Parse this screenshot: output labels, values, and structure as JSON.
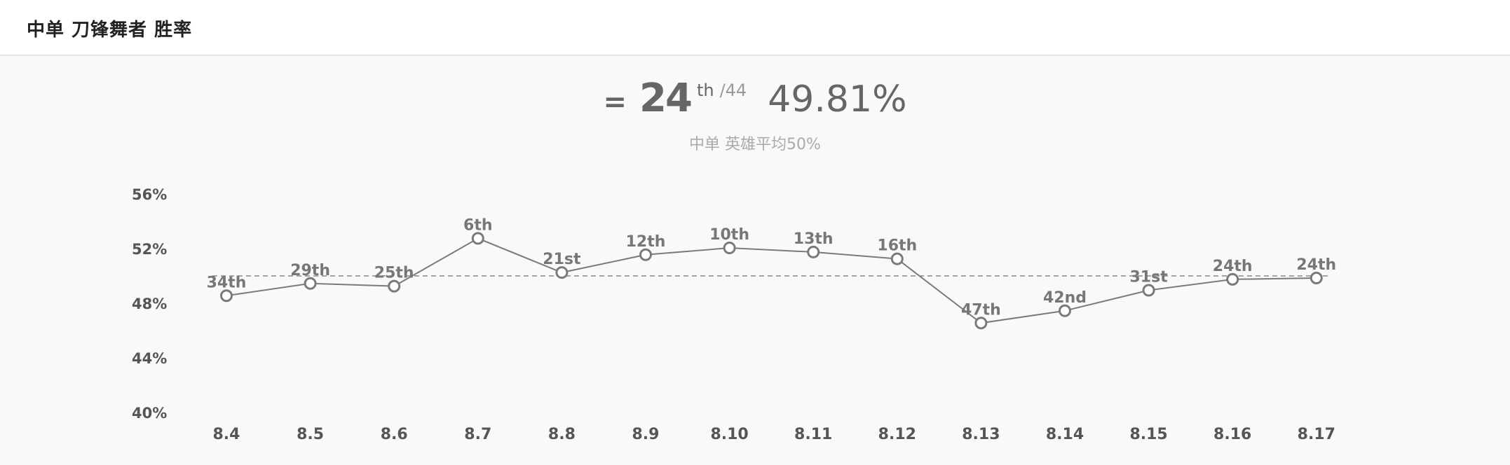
{
  "header": {
    "title": "中单 刀锋舞者 胜率"
  },
  "summary": {
    "prefix": "=",
    "rank": "24",
    "rank_suffix": "th",
    "total": "/44",
    "win_rate": "49.81%",
    "subtitle": "中单 英雄平均50%"
  },
  "colors": {
    "line": "#7a7a7a",
    "point_fill": "#ffffff",
    "point_stroke": "#7a7a7a",
    "reference": "#888888"
  },
  "chart_data": {
    "type": "line",
    "title": "",
    "xlabel": "",
    "ylabel": "",
    "categories": [
      "8.4",
      "8.5",
      "8.6",
      "8.7",
      "8.8",
      "8.9",
      "8.10",
      "8.11",
      "8.12",
      "8.13",
      "8.14",
      "8.15",
      "8.16",
      "8.17"
    ],
    "values": [
      48.6,
      49.5,
      49.3,
      52.8,
      50.3,
      51.6,
      52.1,
      51.8,
      51.3,
      46.6,
      47.5,
      49.0,
      49.8,
      49.9
    ],
    "point_labels": [
      "34th",
      "29th",
      "25th",
      "6th",
      "21st",
      "12th",
      "10th",
      "13th",
      "16th",
      "47th",
      "42nd",
      "31st",
      "24th",
      "24th"
    ],
    "ylim": [
      40,
      56
    ],
    "yticks": [
      40,
      44,
      48,
      52,
      56
    ],
    "ytick_labels": [
      "40%",
      "44%",
      "48%",
      "52%",
      "56%"
    ],
    "reference_line": {
      "value": 50,
      "style": "dashed"
    },
    "grid": false,
    "legend": "none"
  }
}
